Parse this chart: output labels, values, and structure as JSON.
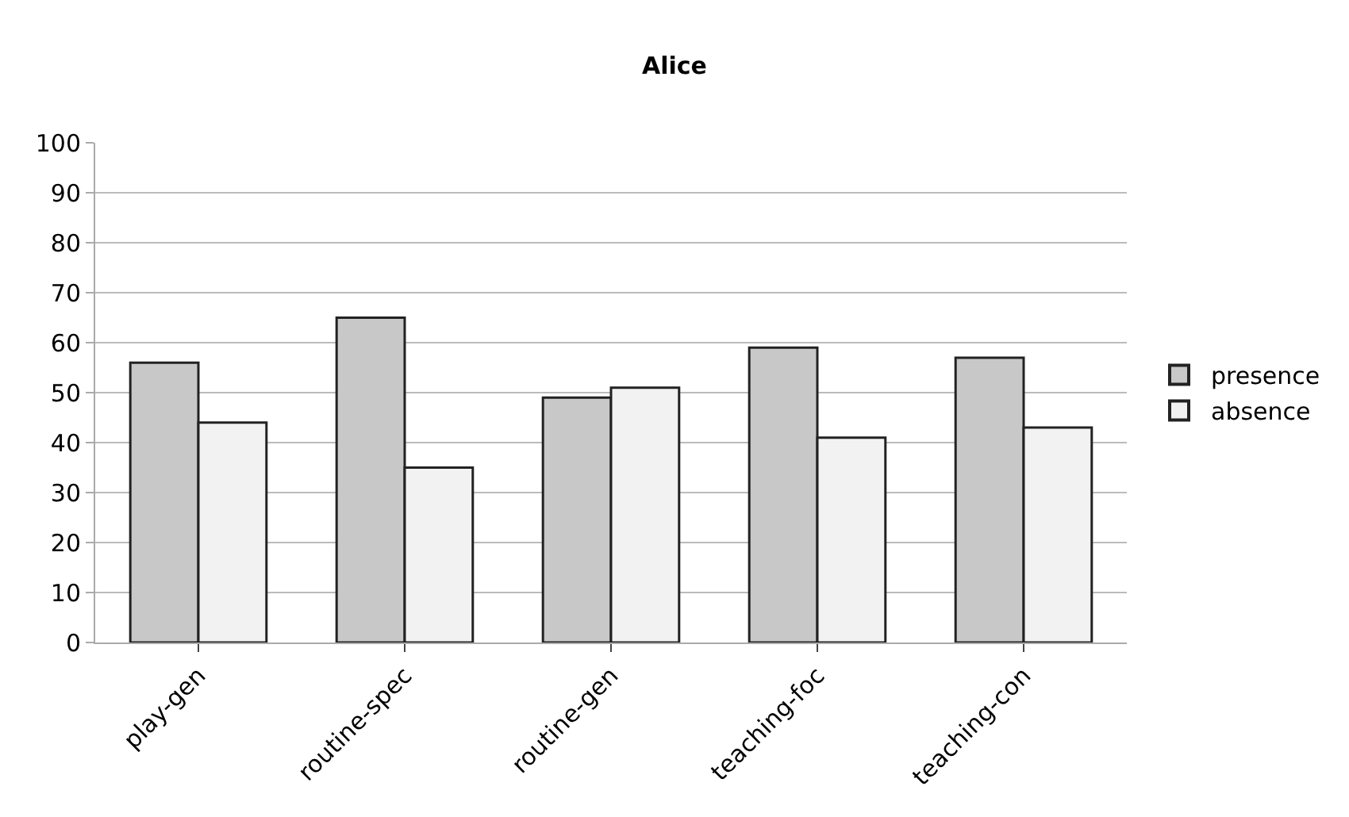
{
  "chart_data": {
    "type": "bar",
    "title": "Alice",
    "categories": [
      "play-gen",
      "routine-spec",
      "routine-gen",
      "teaching-foc",
      "teaching-con"
    ],
    "series": [
      {
        "name": "presence",
        "color": "#c8c8c8",
        "values": [
          56,
          65,
          49,
          59,
          57
        ]
      },
      {
        "name": "absence",
        "color": "#f2f2f2",
        "values": [
          44,
          35,
          51,
          41,
          43
        ]
      }
    ],
    "ylim": [
      0,
      100
    ],
    "yticks": [
      0,
      10,
      20,
      30,
      40,
      50,
      60,
      70,
      80,
      90,
      100
    ],
    "grid": "y",
    "legend": "right"
  }
}
